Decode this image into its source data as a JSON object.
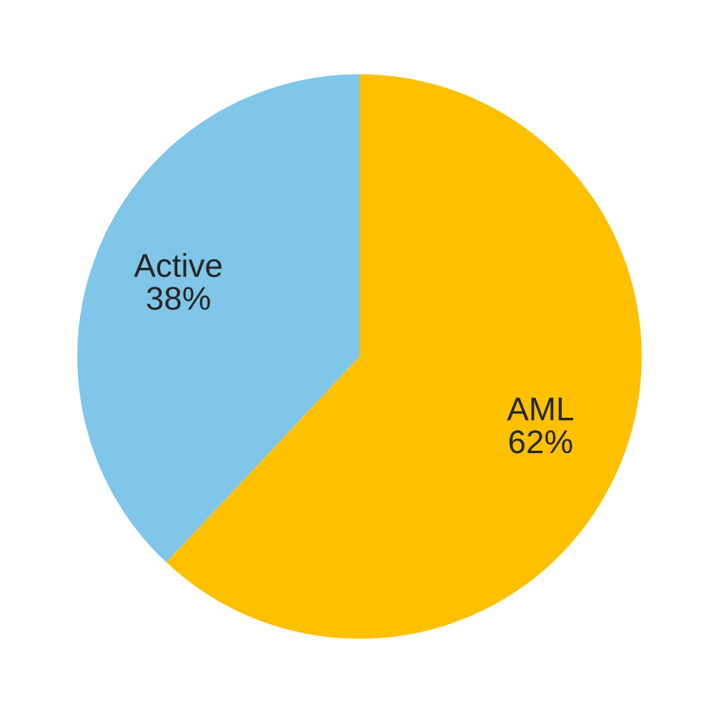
{
  "chart_data": {
    "type": "pie",
    "categories": [
      "AML",
      "Active"
    ],
    "values": [
      62,
      38
    ],
    "colors": [
      "#ffc000",
      "#7fc6e8"
    ],
    "value_labels": [
      "62%",
      "38%"
    ]
  }
}
